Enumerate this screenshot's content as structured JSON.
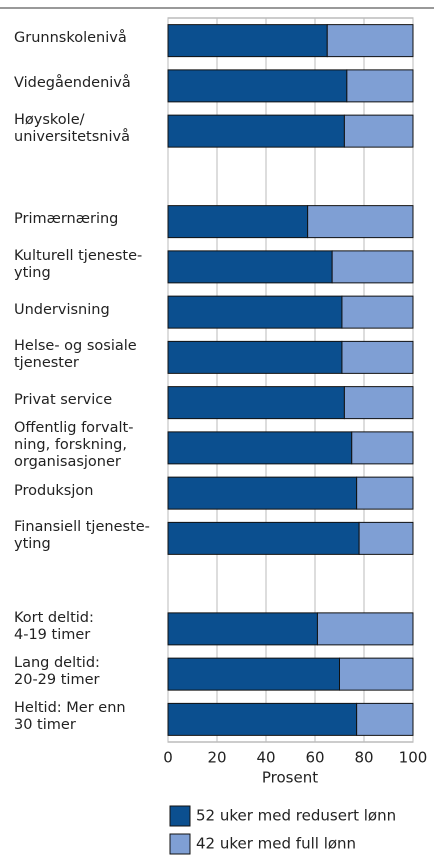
{
  "chart_data": {
    "type": "stacked-barh",
    "categories": [
      "Grunnskolenivå",
      "Videgåendenivå",
      "Høyskole/\nuniversitetsnivå",
      null,
      "Primærnæring",
      "Kulturell tjeneste-\nyting",
      "Undervisning",
      "Helse- og sosiale\ntjenester",
      "Privat service",
      "Offentlig forvalt-\nning, forskning,\norganisasjoner",
      "Produksjon",
      "Finansiell tjeneste-\nyting",
      null,
      "Kort deltid:\n4-19 timer",
      "Lang deltid:\n20-29 timer",
      "Heltid: Mer enn\n30 timer"
    ],
    "series": [
      {
        "name": "52 uker med redusert lønn",
        "color": "#0b4f8f",
        "values": [
          65,
          73,
          72,
          null,
          57,
          67,
          71,
          71,
          72,
          75,
          77,
          78,
          null,
          61,
          70,
          77
        ]
      },
      {
        "name": "42 uker med full lønn",
        "color": "#7f9fd4",
        "values": [
          35,
          27,
          28,
          null,
          43,
          33,
          29,
          29,
          28,
          25,
          23,
          22,
          null,
          39,
          30,
          23
        ]
      }
    ],
    "xlabel": "Prosent",
    "xlim": [
      0,
      100
    ],
    "xticks": [
      0,
      20,
      40,
      60,
      80,
      100
    ],
    "grid": true
  }
}
